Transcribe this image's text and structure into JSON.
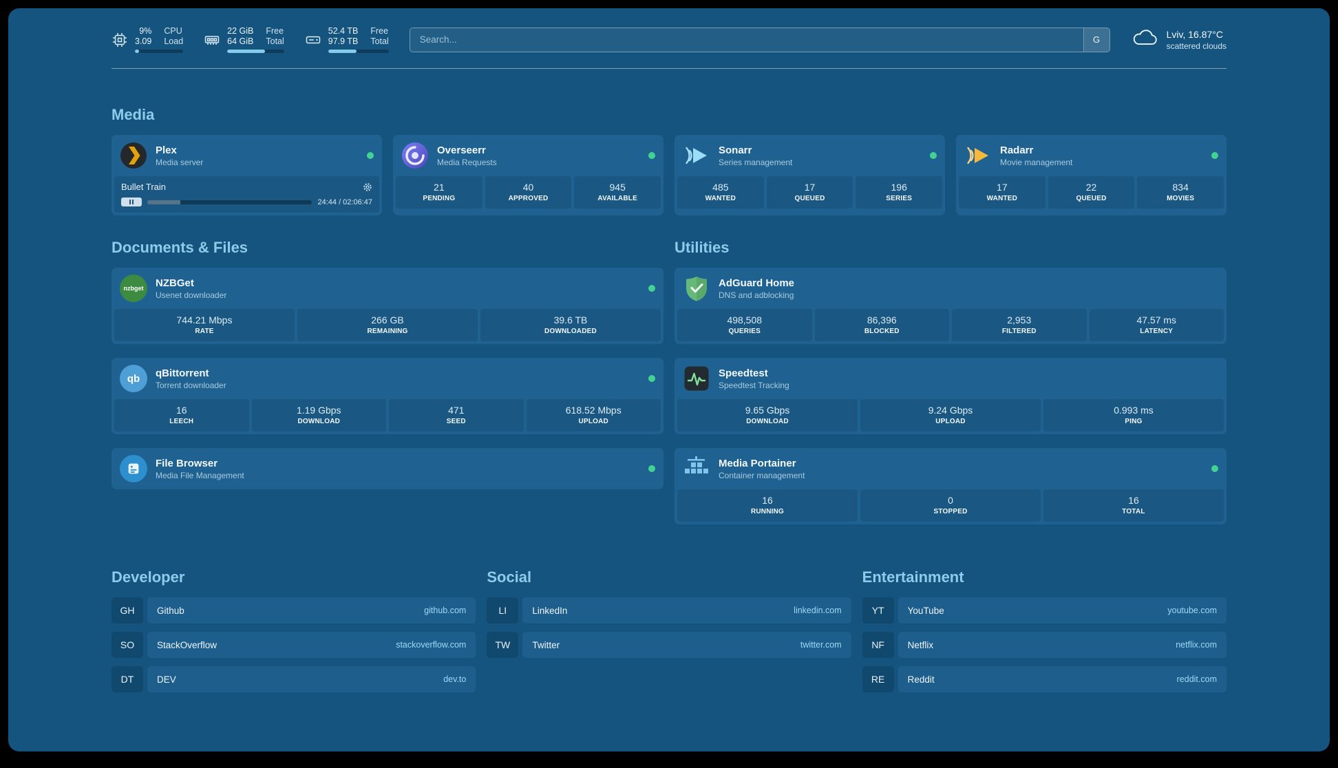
{
  "colors": {
    "status_online": "#42d392",
    "accent": "#85cbee"
  },
  "topbar": {
    "cpu": {
      "value1": "9%",
      "value2": "3.09",
      "label1": "CPU",
      "label2": "Load",
      "progress": "9%"
    },
    "memory": {
      "value1": "22 GiB",
      "value2": "64 GiB",
      "label1": "Free",
      "label2": "Total",
      "progress": "66%"
    },
    "disk": {
      "value1": "52.4 TB",
      "value2": "97.9 TB",
      "label1": "Free",
      "label2": "Total",
      "progress": "47%"
    },
    "search": {
      "placeholder": "Search...",
      "provider_label": "G"
    },
    "weather": {
      "location": "Lviv, 16.87°C",
      "condition": "scattered clouds"
    }
  },
  "media": {
    "heading": "Media",
    "plex": {
      "title": "Plex",
      "subtitle": "Media server",
      "now_playing": "Bullet Train",
      "elapsed_total": "24:44 / 02:06:47",
      "progress": "20%"
    },
    "overseerr": {
      "title": "Overseerr",
      "subtitle": "Media Requests",
      "stats": [
        {
          "value": "21",
          "label": "PENDING"
        },
        {
          "value": "40",
          "label": "APPROVED"
        },
        {
          "value": "945",
          "label": "AVAILABLE"
        }
      ]
    },
    "sonarr": {
      "title": "Sonarr",
      "subtitle": "Series management",
      "stats": [
        {
          "value": "485",
          "label": "WANTED"
        },
        {
          "value": "17",
          "label": "QUEUED"
        },
        {
          "value": "196",
          "label": "SERIES"
        }
      ]
    },
    "radarr": {
      "title": "Radarr",
      "subtitle": "Movie management",
      "stats": [
        {
          "value": "17",
          "label": "WANTED"
        },
        {
          "value": "22",
          "label": "QUEUED"
        },
        {
          "value": "834",
          "label": "MOVIES"
        }
      ]
    }
  },
  "documents": {
    "heading": "Documents & Files",
    "nzbget": {
      "title": "NZBGet",
      "subtitle": "Usenet downloader",
      "icon_label": "nzbget",
      "stats": [
        {
          "value": "744.21 Mbps",
          "label": "RATE"
        },
        {
          "value": "266 GB",
          "label": "REMAINING"
        },
        {
          "value": "39.6 TB",
          "label": "DOWNLOADED"
        }
      ]
    },
    "qbittorrent": {
      "title": "qBittorrent",
      "subtitle": "Torrent downloader",
      "icon_label": "qb",
      "stats": [
        {
          "value": "16",
          "label": "LEECH"
        },
        {
          "value": "1.19 Gbps",
          "label": "DOWNLOAD"
        },
        {
          "value": "471",
          "label": "SEED"
        },
        {
          "value": "618.52 Mbps",
          "label": "UPLOAD"
        }
      ]
    },
    "filebrowser": {
      "title": "File Browser",
      "subtitle": "Media File Management"
    }
  },
  "utilities": {
    "heading": "Utilities",
    "adguard": {
      "title": "AdGuard Home",
      "subtitle": "DNS and adblocking",
      "stats": [
        {
          "value": "498,508",
          "label": "QUERIES"
        },
        {
          "value": "86,396",
          "label": "BLOCKED"
        },
        {
          "value": "2,953",
          "label": "FILTERED"
        },
        {
          "value": "47.57 ms",
          "label": "LATENCY"
        }
      ]
    },
    "speedtest": {
      "title": "Speedtest",
      "subtitle": "Speedtest Tracking",
      "stats": [
        {
          "value": "9.65 Gbps",
          "label": "DOWNLOAD"
        },
        {
          "value": "9.24 Gbps",
          "label": "UPLOAD"
        },
        {
          "value": "0.993 ms",
          "label": "PING"
        }
      ]
    },
    "portainer": {
      "title": "Media Portainer",
      "subtitle": "Container management",
      "stats": [
        {
          "value": "16",
          "label": "RUNNING"
        },
        {
          "value": "0",
          "label": "STOPPED"
        },
        {
          "value": "16",
          "label": "TOTAL"
        }
      ]
    }
  },
  "bookmarks": {
    "developer": {
      "heading": "Developer",
      "items": [
        {
          "abbr": "GH",
          "name": "Github",
          "url": "github.com"
        },
        {
          "abbr": "SO",
          "name": "StackOverflow",
          "url": "stackoverflow.com"
        },
        {
          "abbr": "DT",
          "name": "DEV",
          "url": "dev.to"
        }
      ]
    },
    "social": {
      "heading": "Social",
      "items": [
        {
          "abbr": "LI",
          "name": "LinkedIn",
          "url": "linkedin.com"
        },
        {
          "abbr": "TW",
          "name": "Twitter",
          "url": "twitter.com"
        }
      ]
    },
    "entertainment": {
      "heading": "Entertainment",
      "items": [
        {
          "abbr": "YT",
          "name": "YouTube",
          "url": "youtube.com"
        },
        {
          "abbr": "NF",
          "name": "Netflix",
          "url": "netflix.com"
        },
        {
          "abbr": "RE",
          "name": "Reddit",
          "url": "reddit.com"
        }
      ]
    }
  }
}
